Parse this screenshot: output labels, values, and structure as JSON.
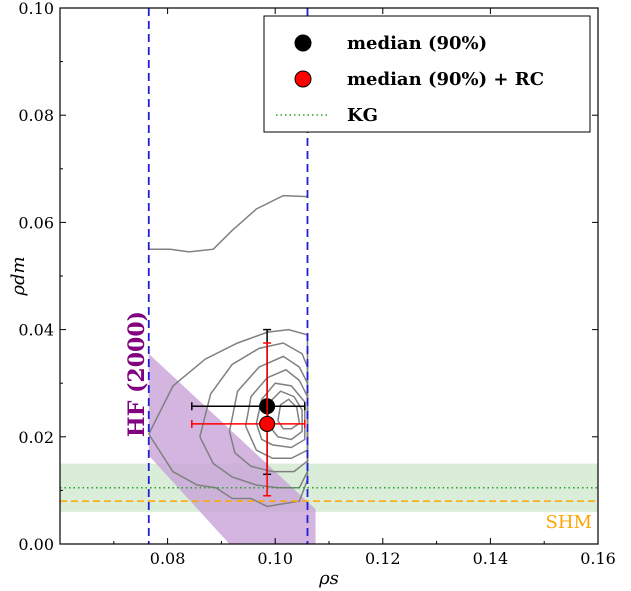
{
  "chart_data": {
    "type": "scatter",
    "xlabel": "ρs",
    "ylabel": "ρdm",
    "xlim": [
      0.06,
      0.16
    ],
    "ylim": [
      0.0,
      0.1
    ],
    "xticks": [
      0.08,
      0.1,
      0.12,
      0.14,
      0.16
    ],
    "xtick_labels": [
      "0.08",
      "0.10",
      "0.12",
      "0.14",
      "0.16"
    ],
    "yticks": [
      0.0,
      0.02,
      0.04,
      0.06,
      0.08,
      0.1
    ],
    "ytick_labels": [
      "0.00",
      "0.02",
      "0.04",
      "0.06",
      "0.08",
      "0.10"
    ],
    "grid": false,
    "legend_position": "top-right",
    "legend": [
      {
        "label": "median (90%)",
        "marker": "circle",
        "color": "#000000"
      },
      {
        "label": "median (90%) + RC",
        "marker": "circle",
        "color": "#ff0000"
      },
      {
        "label": "KG",
        "marker": "dotted-line",
        "color": "#2ca02c"
      }
    ],
    "points": [
      {
        "name": "median (90%)",
        "x": 0.0985,
        "y": 0.0257,
        "xerr": [
          0.0845,
          0.1055
        ],
        "yerr": [
          0.013,
          0.04
        ],
        "color": "#000000"
      },
      {
        "name": "median (90%) + RC",
        "x": 0.0985,
        "y": 0.0224,
        "xerr": [
          0.0845,
          0.1055
        ],
        "yerr": [
          0.009,
          0.0375
        ],
        "color": "#ff0000"
      }
    ],
    "vlines": [
      {
        "x": 0.0765,
        "color": "#1f1fd6",
        "style": "dashed"
      },
      {
        "x": 0.106,
        "color": "#1f1fd6",
        "style": "dashed"
      }
    ],
    "hband": {
      "y0": 0.006,
      "y1": 0.015,
      "color": "#b9dfb9"
    },
    "hlines": [
      {
        "y": 0.0105,
        "color": "#2ca02c",
        "style": "dotted",
        "label": "KG"
      },
      {
        "y": 0.008,
        "color": "#ffa500",
        "style": "dashed",
        "label": "SHM"
      }
    ],
    "annotations": [
      {
        "text": "HF (2000)",
        "color": "#800080"
      },
      {
        "text": "SHM",
        "color": "#ffa500"
      }
    ],
    "hf_region": {
      "color": "#c8a2d8",
      "polygon": [
        [
          0.0765,
          0.0355
        ],
        [
          0.1075,
          0.0065
        ],
        [
          0.1075,
          0.0
        ],
        [
          0.0915,
          0.0
        ],
        [
          0.0765,
          0.0165
        ]
      ]
    },
    "contours": [
      [
        [
          0.0765,
          0.055
        ],
        [
          0.0805,
          0.055
        ],
        [
          0.084,
          0.0545
        ],
        [
          0.0885,
          0.055
        ],
        [
          0.092,
          0.0585
        ],
        [
          0.0965,
          0.0625
        ],
        [
          0.1015,
          0.065
        ],
        [
          0.106,
          0.0648
        ]
      ],
      [
        [
          0.0765,
          0.0205
        ],
        [
          0.081,
          0.0295
        ],
        [
          0.087,
          0.0345
        ],
        [
          0.093,
          0.0375
        ],
        [
          0.0985,
          0.0395
        ],
        [
          0.1025,
          0.04
        ],
        [
          0.106,
          0.039
        ],
        [
          0.106,
          0.012
        ],
        [
          0.1045,
          0.008
        ],
        [
          0.1015,
          0.0075
        ],
        [
          0.0985,
          0.007
        ],
        [
          0.0955,
          0.0085
        ],
        [
          0.092,
          0.0085
        ],
        [
          0.089,
          0.0105
        ],
        [
          0.0855,
          0.011
        ],
        [
          0.081,
          0.0135
        ],
        [
          0.0765,
          0.0205
        ]
      ],
      [
        [
          0.086,
          0.02
        ],
        [
          0.088,
          0.028
        ],
        [
          0.092,
          0.0335
        ],
        [
          0.097,
          0.0365
        ],
        [
          0.1015,
          0.0375
        ],
        [
          0.105,
          0.0355
        ],
        [
          0.106,
          0.033
        ],
        [
          0.106,
          0.0135
        ],
        [
          0.1045,
          0.0105
        ],
        [
          0.1005,
          0.0105
        ],
        [
          0.0965,
          0.011
        ],
        [
          0.092,
          0.0125
        ],
        [
          0.0885,
          0.015
        ],
        [
          0.086,
          0.02
        ]
      ],
      [
        [
          0.0915,
          0.021
        ],
        [
          0.093,
          0.0285
        ],
        [
          0.097,
          0.033
        ],
        [
          0.1015,
          0.035
        ],
        [
          0.1045,
          0.033
        ],
        [
          0.106,
          0.03
        ],
        [
          0.106,
          0.0155
        ],
        [
          0.1035,
          0.0135
        ],
        [
          0.0995,
          0.0135
        ],
        [
          0.0955,
          0.0145
        ],
        [
          0.0925,
          0.017
        ],
        [
          0.0915,
          0.021
        ]
      ],
      [
        [
          0.0945,
          0.022
        ],
        [
          0.0955,
          0.0275
        ],
        [
          0.0985,
          0.031
        ],
        [
          0.102,
          0.0325
        ],
        [
          0.1045,
          0.0305
        ],
        [
          0.106,
          0.0275
        ],
        [
          0.106,
          0.0175
        ],
        [
          0.103,
          0.016
        ],
        [
          0.0995,
          0.016
        ],
        [
          0.0965,
          0.0175
        ],
        [
          0.0945,
          0.022
        ]
      ],
      [
        [
          0.0965,
          0.0225
        ],
        [
          0.0975,
          0.027
        ],
        [
          0.1,
          0.03
        ],
        [
          0.103,
          0.0295
        ],
        [
          0.1055,
          0.0265
        ],
        [
          0.1055,
          0.0195
        ],
        [
          0.103,
          0.018
        ],
        [
          0.0995,
          0.0185
        ],
        [
          0.0975,
          0.0195
        ],
        [
          0.0965,
          0.0225
        ]
      ],
      [
        [
          0.0985,
          0.0225
        ],
        [
          0.099,
          0.0265
        ],
        [
          0.101,
          0.0285
        ],
        [
          0.1035,
          0.0275
        ],
        [
          0.105,
          0.025
        ],
        [
          0.105,
          0.021
        ],
        [
          0.103,
          0.0195
        ],
        [
          0.1005,
          0.02
        ],
        [
          0.0985,
          0.0225
        ]
      ],
      [
        [
          0.1005,
          0.023
        ],
        [
          0.101,
          0.026
        ],
        [
          0.1025,
          0.027
        ],
        [
          0.104,
          0.0255
        ],
        [
          0.1045,
          0.0225
        ],
        [
          0.103,
          0.0215
        ],
        [
          0.1015,
          0.0215
        ],
        [
          0.1005,
          0.023
        ]
      ]
    ]
  }
}
